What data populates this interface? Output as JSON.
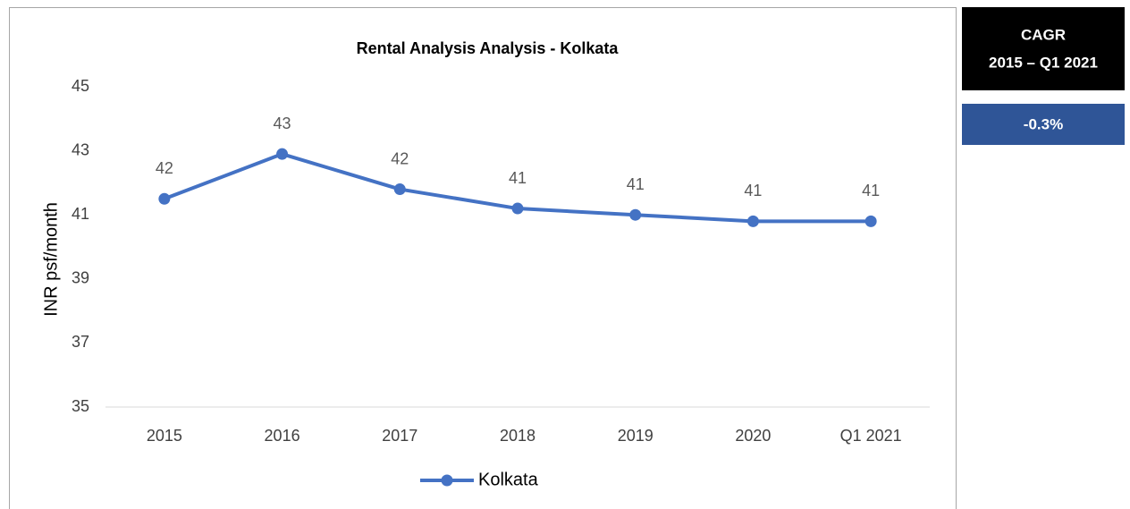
{
  "chart_data": {
    "type": "line",
    "title": "Rental Analysis Analysis - Kolkata",
    "y_label": "INR psf/month",
    "categories": [
      "2015",
      "2016",
      "2017",
      "2018",
      "2019",
      "2020",
      "Q1 2021"
    ],
    "series": [
      {
        "name": "Kolkata",
        "color": "#4472c4",
        "values": [
          41.5,
          42.9,
          41.8,
          41.2,
          41.0,
          40.8,
          40.8
        ],
        "value_labels": [
          "42",
          "43",
          "42",
          "41",
          "41",
          "41",
          "41"
        ]
      }
    ],
    "ylim": [
      35,
      45
    ],
    "yticks": [
      35,
      37,
      39,
      41,
      43,
      45
    ],
    "grid": false,
    "legend": "bottom"
  },
  "cagr_panel": {
    "title": "CAGR",
    "period": "2015 – Q1 2021",
    "value": "-0.3%"
  }
}
